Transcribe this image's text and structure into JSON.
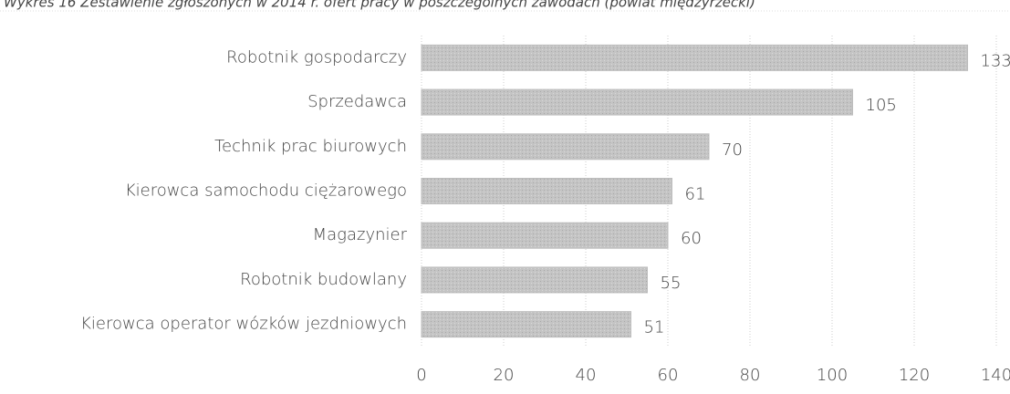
{
  "chart_data": {
    "type": "bar",
    "orientation": "horizontal",
    "title": "Wykres 16 Zestawienie zgłoszonych w 2014 r. ofert pracy w poszczególnych zawodach (powiat międzyrzecki)",
    "categories": [
      "Robotnik gospodarczy",
      "Sprzedawca",
      "Technik prac biurowych",
      "Kierowca samochodu ciężarowego",
      "Magazynier",
      "Robotnik budowlany",
      "Kierowca operator wózków jezdniowych"
    ],
    "values": [
      133,
      105,
      70,
      61,
      60,
      55,
      51
    ],
    "color": "#bdbdbd",
    "xlim": [
      0,
      140
    ],
    "xticks": [
      0,
      20,
      40,
      60,
      80,
      100,
      120,
      140
    ],
    "grid": true
  }
}
